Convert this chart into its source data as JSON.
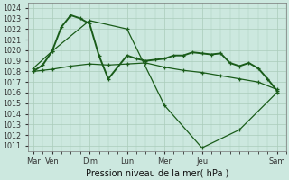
{
  "background_color": "#cce8df",
  "grid_color": "#aaccbb",
  "line_color": "#1a5c1a",
  "ylim": [
    1010.5,
    1024.5
  ],
  "yticks": [
    1011,
    1012,
    1013,
    1014,
    1015,
    1016,
    1017,
    1018,
    1019,
    1020,
    1021,
    1022,
    1023,
    1024
  ],
  "xlabel": "Pression niveau de la mer( hPa )",
  "day_labels": [
    "Mar",
    "Ven",
    "Dim",
    "Lun",
    "Mer",
    "Jeu",
    "Sam"
  ],
  "day_positions": [
    0,
    1,
    3,
    5,
    7,
    9,
    13
  ],
  "xlim": [
    -0.3,
    13.5
  ],
  "series1_x": [
    0,
    0.5,
    1.0,
    1.5,
    2.0,
    2.5,
    3.0,
    3.5,
    4.0,
    5.0,
    5.5,
    6.0,
    6.5,
    7.0,
    7.5,
    8.0,
    8.5,
    9.0,
    9.5,
    10.0,
    10.5,
    11.0,
    11.5,
    12.0,
    12.5,
    13.0
  ],
  "series1_y": [
    1018.0,
    1018.6,
    1019.9,
    1022.2,
    1023.3,
    1023.0,
    1022.5,
    1019.5,
    1017.3,
    1019.5,
    1019.2,
    1019.0,
    1019.1,
    1019.2,
    1019.5,
    1019.5,
    1019.8,
    1019.7,
    1019.6,
    1019.7,
    1018.8,
    1018.5,
    1018.8,
    1018.3,
    1017.3,
    1016.2
  ],
  "series2_x": [
    0,
    1,
    3,
    5,
    7,
    9,
    11,
    13
  ],
  "series2_y": [
    1018.3,
    1019.9,
    1022.8,
    1022.0,
    1014.8,
    1010.8,
    1012.5,
    1016.0
  ],
  "series3_x": [
    0,
    0.5,
    1,
    2,
    3,
    4,
    5,
    6,
    7,
    8,
    9,
    10,
    11,
    12,
    13
  ],
  "series3_y": [
    1018.0,
    1018.1,
    1018.2,
    1018.5,
    1018.7,
    1018.6,
    1018.7,
    1018.8,
    1018.4,
    1018.1,
    1017.9,
    1017.6,
    1017.3,
    1017.0,
    1016.3
  ]
}
